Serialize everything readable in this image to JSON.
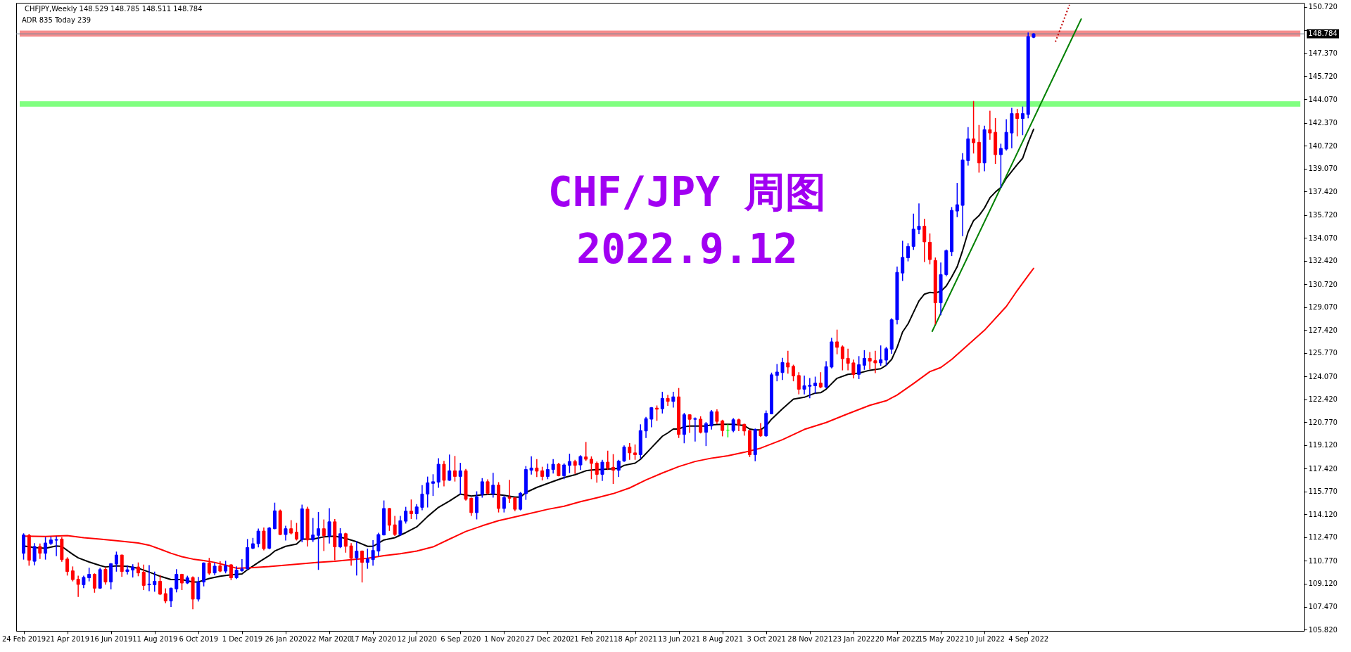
{
  "chart_data": {
    "type": "candlestick",
    "title": "CHF/JPY 周图",
    "subtitle": "2022.9.12",
    "annotations": [
      "CHFJPY,Weekly 148.529 148.785 148.511 148.784",
      "ADR 835 Today 239"
    ],
    "x": [
      "2019-02-24",
      "2019-03-03",
      "2019-03-10",
      "2019-03-17",
      "2019-03-24",
      "2019-03-31",
      "2019-04-07",
      "2019-04-14",
      "2019-04-21",
      "2019-04-28",
      "2019-05-05",
      "2019-05-12",
      "2019-05-19",
      "2019-05-26",
      "2019-06-02",
      "2019-06-09",
      "2019-06-16",
      "2019-06-23",
      "2019-06-30",
      "2019-07-07",
      "2019-07-14",
      "2019-07-21",
      "2019-07-28",
      "2019-08-04",
      "2019-08-11",
      "2019-08-18",
      "2019-08-25",
      "2019-09-01",
      "2019-09-08",
      "2019-09-15",
      "2019-09-22",
      "2019-09-29",
      "2019-10-06",
      "2019-10-13",
      "2019-10-20",
      "2019-10-27",
      "2019-11-03",
      "2019-11-10",
      "2019-11-17",
      "2019-11-24",
      "2019-12-01",
      "2019-12-08",
      "2019-12-15",
      "2019-12-22",
      "2019-12-29",
      "2020-01-05",
      "2020-01-12",
      "2020-01-19",
      "2020-01-26",
      "2020-02-02",
      "2020-02-09",
      "2020-02-16",
      "2020-02-23",
      "2020-03-01",
      "2020-03-08",
      "2020-03-15",
      "2020-03-22",
      "2020-03-29",
      "2020-04-05",
      "2020-04-12",
      "2020-04-19",
      "2020-04-26",
      "2020-05-03",
      "2020-05-10",
      "2020-05-17",
      "2020-05-24",
      "2020-05-31",
      "2020-06-07",
      "2020-06-14",
      "2020-06-21",
      "2020-06-28",
      "2020-07-05",
      "2020-07-12",
      "2020-07-19",
      "2020-07-26",
      "2020-08-02",
      "2020-08-09",
      "2020-08-16",
      "2020-08-23",
      "2020-08-30",
      "2020-09-06",
      "2020-09-13",
      "2020-09-20",
      "2020-09-27",
      "2020-10-04",
      "2020-10-11",
      "2020-10-18",
      "2020-10-25",
      "2020-11-01",
      "2020-11-08",
      "2020-11-15",
      "2020-11-22",
      "2020-11-29",
      "2020-12-06",
      "2020-12-13",
      "2020-12-20",
      "2020-12-27",
      "2021-01-03",
      "2021-01-10",
      "2021-01-17",
      "2021-01-24",
      "2021-01-31",
      "2021-02-07",
      "2021-02-14",
      "2021-02-21",
      "2021-02-28",
      "2021-03-07",
      "2021-03-14",
      "2021-03-21",
      "2021-03-28",
      "2021-04-04",
      "2021-04-11",
      "2021-04-18",
      "2021-04-25",
      "2021-05-02",
      "2021-05-09",
      "2021-05-16",
      "2021-05-23",
      "2021-05-30",
      "2021-06-06",
      "2021-06-13",
      "2021-06-20",
      "2021-06-27",
      "2021-07-04",
      "2021-07-11",
      "2021-07-18",
      "2021-07-25",
      "2021-08-01",
      "2021-08-08",
      "2021-08-15",
      "2021-08-22",
      "2021-08-29",
      "2021-09-05",
      "2021-09-12",
      "2021-09-19",
      "2021-09-26",
      "2021-10-03",
      "2021-10-10",
      "2021-10-17",
      "2021-10-24",
      "2021-10-31",
      "2021-11-07",
      "2021-11-14",
      "2021-11-21",
      "2021-11-28",
      "2021-12-05",
      "2021-12-12",
      "2021-12-19",
      "2021-12-26",
      "2022-01-02",
      "2022-01-09",
      "2022-01-16",
      "2022-01-23",
      "2022-01-30",
      "2022-02-06",
      "2022-02-13",
      "2022-02-20",
      "2022-02-27",
      "2022-03-06",
      "2022-03-13",
      "2022-03-20",
      "2022-03-27",
      "2022-04-03",
      "2022-04-10",
      "2022-04-17",
      "2022-04-24",
      "2022-05-01",
      "2022-05-08",
      "2022-05-15",
      "2022-05-22",
      "2022-05-29",
      "2022-06-05",
      "2022-06-12",
      "2022-06-19",
      "2022-06-26",
      "2022-07-03",
      "2022-07-10",
      "2022-07-17",
      "2022-07-24",
      "2022-07-31",
      "2022-08-07",
      "2022-08-14",
      "2022-08-21",
      "2022-08-28",
      "2022-09-04",
      "2022-09-11"
    ],
    "ohlc": [
      [
        111.32,
        112.72,
        110.9,
        112.64
      ],
      [
        112.61,
        112.68,
        110.46,
        110.82
      ],
      [
        110.74,
        112.01,
        110.49,
        111.81
      ],
      [
        111.81,
        111.98,
        110.95,
        111.32
      ],
      [
        111.32,
        112.44,
        110.9,
        112.06
      ],
      [
        112.03,
        112.48,
        111.95,
        112.28
      ],
      [
        112.26,
        112.51,
        111.15,
        112.31
      ],
      [
        112.34,
        112.44,
        110.74,
        110.86
      ],
      [
        110.9,
        110.99,
        109.75,
        110.0
      ],
      [
        110.05,
        110.33,
        109.33,
        109.42
      ],
      [
        109.45,
        109.66,
        108.21,
        109.07
      ],
      [
        109.05,
        109.66,
        108.84,
        109.58
      ],
      [
        109.55,
        110.24,
        109.33,
        109.8
      ],
      [
        109.8,
        109.83,
        108.51,
        108.8
      ],
      [
        108.8,
        110.24,
        108.8,
        110.14
      ],
      [
        110.16,
        110.29,
        109.09,
        109.25
      ],
      [
        109.25,
        110.57,
        108.75,
        110.57
      ],
      [
        110.54,
        111.4,
        110.03,
        111.19
      ],
      [
        111.19,
        111.19,
        109.66,
        110.0
      ],
      [
        110.0,
        110.41,
        109.83,
        110.13
      ],
      [
        110.11,
        110.49,
        109.61,
        110.33
      ],
      [
        110.33,
        110.62,
        109.7,
        109.9
      ],
      [
        109.96,
        110.46,
        108.7,
        109.0
      ],
      [
        109.04,
        110.43,
        108.62,
        109.1
      ],
      [
        109.05,
        109.96,
        108.59,
        109.3
      ],
      [
        109.3,
        109.71,
        108.34,
        108.37
      ],
      [
        108.41,
        108.75,
        107.76,
        107.88
      ],
      [
        107.88,
        108.8,
        107.48,
        108.8
      ],
      [
        108.75,
        110.13,
        108.54,
        109.8
      ],
      [
        109.8,
        109.8,
        108.7,
        109.17
      ],
      [
        109.17,
        109.66,
        109.14,
        109.55
      ],
      [
        109.57,
        109.61,
        107.32,
        108.01
      ],
      [
        108.01,
        109.58,
        107.88,
        109.25
      ],
      [
        109.25,
        110.62,
        108.97,
        110.62
      ],
      [
        110.62,
        110.95,
        109.8,
        109.88
      ],
      [
        109.9,
        110.62,
        109.78,
        110.39
      ],
      [
        110.41,
        110.71,
        110.0,
        110.03
      ],
      [
        110.03,
        110.74,
        109.91,
        110.41
      ],
      [
        110.49,
        110.49,
        109.42,
        109.55
      ],
      [
        109.55,
        110.33,
        109.5,
        110.11
      ],
      [
        110.06,
        110.86,
        110.03,
        110.19
      ],
      [
        110.19,
        112.31,
        110.19,
        111.73
      ],
      [
        111.68,
        112.39,
        111.65,
        112.01
      ],
      [
        112.01,
        113.06,
        111.78,
        112.92
      ],
      [
        112.92,
        113.14,
        111.57,
        111.65
      ],
      [
        111.68,
        113.17,
        111.65,
        113.14
      ],
      [
        113.09,
        114.93,
        113.09,
        114.38
      ],
      [
        114.38,
        114.43,
        112.67,
        112.67
      ],
      [
        112.67,
        113.27,
        112.28,
        113.09
      ],
      [
        113.09,
        113.67,
        112.72,
        112.77
      ],
      [
        112.84,
        113.47,
        112.28,
        112.34
      ],
      [
        112.31,
        114.79,
        112.15,
        114.53
      ],
      [
        114.5,
        114.63,
        111.85,
        112.28
      ],
      [
        112.28,
        113.83,
        112.18,
        112.64
      ],
      [
        112.61,
        114.26,
        110.16,
        113.09
      ],
      [
        113.09,
        113.72,
        111.52,
        112.59
      ],
      [
        112.56,
        114.53,
        112.06,
        113.59
      ],
      [
        113.59,
        113.75,
        110.86,
        111.78
      ],
      [
        111.78,
        113.09,
        111.73,
        112.73
      ],
      [
        112.73,
        112.76,
        111.4,
        111.82
      ],
      [
        111.85,
        112.01,
        110.46,
        110.96
      ],
      [
        110.99,
        112.15,
        109.75,
        111.48
      ],
      [
        111.48,
        111.48,
        109.25,
        110.66
      ],
      [
        110.66,
        111.62,
        110.24,
        110.91
      ],
      [
        110.86,
        112.23,
        110.46,
        111.52
      ],
      [
        111.48,
        112.76,
        111.15,
        112.67
      ],
      [
        112.64,
        115.09,
        112.64,
        114.55
      ],
      [
        114.55,
        114.55,
        112.97,
        113.34
      ],
      [
        113.37,
        113.97,
        112.61,
        112.67
      ],
      [
        112.67,
        113.97,
        112.61,
        113.67
      ],
      [
        113.63,
        114.63,
        113.5,
        114.36
      ],
      [
        114.36,
        115.16,
        113.83,
        114.17
      ],
      [
        114.17,
        114.83,
        113.8,
        114.66
      ],
      [
        114.63,
        116.2,
        114.46,
        115.59
      ],
      [
        115.59,
        116.81,
        114.66,
        116.4
      ],
      [
        116.36,
        116.98,
        115.49,
        116.48
      ],
      [
        116.45,
        118.14,
        116.08,
        117.74
      ],
      [
        117.74,
        117.94,
        116.18,
        116.58
      ],
      [
        116.58,
        118.4,
        116.58,
        117.27
      ],
      [
        117.27,
        118.3,
        116.53,
        116.86
      ],
      [
        116.86,
        117.8,
        115.59,
        117.27
      ],
      [
        117.27,
        117.36,
        115.16,
        115.21
      ],
      [
        115.29,
        115.29,
        114.05,
        114.25
      ],
      [
        114.25,
        115.75,
        113.8,
        115.4
      ],
      [
        115.57,
        116.7,
        115.37,
        116.48
      ],
      [
        116.48,
        116.61,
        115.59,
        115.65
      ],
      [
        115.62,
        117.08,
        115.37,
        116.23
      ],
      [
        116.23,
        116.41,
        114.3,
        114.55
      ],
      [
        114.55,
        115.45,
        114.3,
        115.34
      ],
      [
        115.37,
        116.58,
        114.99,
        115.29
      ],
      [
        115.32,
        115.32,
        114.4,
        114.49
      ],
      [
        114.49,
        115.7,
        114.45,
        115.65
      ],
      [
        115.62,
        117.57,
        115.21,
        117.36
      ],
      [
        117.31,
        118.27,
        117.03,
        117.47
      ],
      [
        117.47,
        118.07,
        116.86,
        117.24
      ],
      [
        117.27,
        117.52,
        116.61,
        116.86
      ],
      [
        116.86,
        117.74,
        116.7,
        117.36
      ],
      [
        117.36,
        118.07,
        117.11,
        117.74
      ],
      [
        117.74,
        117.8,
        116.91,
        116.91
      ],
      [
        116.91,
        117.77,
        116.7,
        117.69
      ],
      [
        117.66,
        118.46,
        117.14,
        117.94
      ],
      [
        117.94,
        118.02,
        117.08,
        117.66
      ],
      [
        117.69,
        118.35,
        117.36,
        118.3
      ],
      [
        118.27,
        119.31,
        118.02,
        118.1
      ],
      [
        118.1,
        118.27,
        116.7,
        117.8
      ],
      [
        117.82,
        117.9,
        116.45,
        117.01
      ],
      [
        117.01,
        118.02,
        116.58,
        117.89
      ],
      [
        117.89,
        118.68,
        117.36,
        117.47
      ],
      [
        117.52,
        118.43,
        116.36,
        117.31
      ],
      [
        117.31,
        118.02,
        116.86,
        117.97
      ],
      [
        117.97,
        119.06,
        117.94,
        118.98
      ],
      [
        118.98,
        119.23,
        118.1,
        118.56
      ],
      [
        118.56,
        119.13,
        118.1,
        118.43
      ],
      [
        118.43,
        120.58,
        118.18,
        120.17
      ],
      [
        120.14,
        121.11,
        119.67,
        121.03
      ],
      [
        120.99,
        121.82,
        120.45,
        121.82
      ],
      [
        121.79,
        121.94,
        120.91,
        121.71
      ],
      [
        121.74,
        122.93,
        121.44,
        122.49
      ],
      [
        122.49,
        122.7,
        121.99,
        122.27
      ],
      [
        122.27,
        122.93,
        121.87,
        122.6
      ],
      [
        122.6,
        123.2,
        119.67,
        119.89
      ],
      [
        119.89,
        121.41,
        119.29,
        121.31
      ],
      [
        121.31,
        121.31,
        120.04,
        120.98
      ],
      [
        120.98,
        121.08,
        119.42,
        121.03
      ],
      [
        120.99,
        121.16,
        120.0,
        120.04
      ],
      [
        120.04,
        120.75,
        119.09,
        120.67
      ],
      [
        120.5,
        121.61,
        120.28,
        121.53
      ],
      [
        121.53,
        121.66,
        120.67,
        120.83
      ],
      [
        120.87,
        120.91,
        119.79,
        120.17
      ],
      [
        120.2,
        120.58,
        119.72,
        120.2
      ],
      [
        120.17,
        121.03,
        120.09,
        120.95
      ],
      [
        120.95,
        120.99,
        120.17,
        120.58
      ],
      [
        120.62,
        120.62,
        119.84,
        120.14
      ],
      [
        120.17,
        120.17,
        118.3,
        118.43
      ],
      [
        118.43,
        120.28,
        118.0,
        120.25
      ],
      [
        120.22,
        120.67,
        119.76,
        119.79
      ],
      [
        119.79,
        121.58,
        119.76,
        121.41
      ],
      [
        121.38,
        124.31,
        121.38,
        124.19
      ],
      [
        124.14,
        124.93,
        123.76,
        124.39
      ],
      [
        124.35,
        125.38,
        123.86,
        125.08
      ],
      [
        125.05,
        125.88,
        124.31,
        124.75
      ],
      [
        124.8,
        124.88,
        123.76,
        124.11
      ],
      [
        124.14,
        124.34,
        122.82,
        123.15
      ],
      [
        123.15,
        124.09,
        122.82,
        123.4
      ],
      [
        123.36,
        123.92,
        122.53,
        123.44
      ],
      [
        123.4,
        124.02,
        122.87,
        123.59
      ],
      [
        123.59,
        124.34,
        123.26,
        123.31
      ],
      [
        123.31,
        125.13,
        123.26,
        124.78
      ],
      [
        124.75,
        126.82,
        124.69,
        126.57
      ],
      [
        126.57,
        127.41,
        125.71,
        126.17
      ],
      [
        126.21,
        126.27,
        124.55,
        125.35
      ],
      [
        125.38,
        126.04,
        124.55,
        125.02
      ],
      [
        125.05,
        125.25,
        123.97,
        124.22
      ],
      [
        124.22,
        125.5,
        123.92,
        124.92
      ],
      [
        124.88,
        125.93,
        124.59,
        125.38
      ],
      [
        125.38,
        125.79,
        124.63,
        125.18
      ],
      [
        125.21,
        125.88,
        124.35,
        125.05
      ],
      [
        125.05,
        126.27,
        124.88,
        125.28
      ],
      [
        125.25,
        126.17,
        124.88,
        126.07
      ],
      [
        126.04,
        128.23,
        125.74,
        128.16
      ],
      [
        128.16,
        131.96,
        127.86,
        131.58
      ],
      [
        131.53,
        133.82,
        131.0,
        132.66
      ],
      [
        132.63,
        133.64,
        132.41,
        133.45
      ],
      [
        133.45,
        135.77,
        133.24,
        134.7
      ],
      [
        134.67,
        136.51,
        134.37,
        134.91
      ],
      [
        134.91,
        135.41,
        132.36,
        133.78
      ],
      [
        133.75,
        134.35,
        132.2,
        132.5
      ],
      [
        132.44,
        132.61,
        127.86,
        129.38
      ],
      [
        129.38,
        132.25,
        128.52,
        131.42
      ],
      [
        131.42,
        133.19,
        131.34,
        133.15
      ],
      [
        133.07,
        136.25,
        132.79,
        136.05
      ],
      [
        136.0,
        137.99,
        135.6,
        136.46
      ],
      [
        136.41,
        140.14,
        134.23,
        139.69
      ],
      [
        139.64,
        142.01,
        139.31,
        141.21
      ],
      [
        141.21,
        143.9,
        140.19,
        140.93
      ],
      [
        140.96,
        142.17,
        138.81,
        139.47
      ],
      [
        139.47,
        142.12,
        138.91,
        141.87
      ],
      [
        141.87,
        143.2,
        141.18,
        141.63
      ],
      [
        141.68,
        142.67,
        139.44,
        140.07
      ],
      [
        140.07,
        140.82,
        137.7,
        140.52
      ],
      [
        140.47,
        142.59,
        140.4,
        141.68
      ],
      [
        141.63,
        143.41,
        140.57,
        143.03
      ],
      [
        143.03,
        143.33,
        141.43,
        142.67
      ],
      [
        142.67,
        143.5,
        141.51,
        143.03
      ],
      [
        142.97,
        148.84,
        142.72,
        148.59
      ],
      [
        148.529,
        148.785,
        148.511,
        148.784
      ]
    ],
    "colors": [
      "#0000ff",
      "#ff0000",
      "#0000ff",
      "#ff0000",
      "#0000ff",
      "#0000ff",
      "#0000ff",
      "#ff0000",
      "#ff0000",
      "#ff0000",
      "#ff0000",
      "#0000ff",
      "#0000ff",
      "#ff0000",
      "#0000ff",
      "#ff0000",
      "#0000ff",
      "#0000ff",
      "#ff0000",
      "#0000ff",
      "#0000ff",
      "#ff0000",
      "#ff0000",
      "#0000ff",
      "#0000ff",
      "#ff0000",
      "#ff0000",
      "#0000ff",
      "#0000ff",
      "#ff0000",
      "#0000ff",
      "#ff0000",
      "#0000ff",
      "#0000ff",
      "#ff0000",
      "#0000ff",
      "#ff0000",
      "#0000ff",
      "#ff0000",
      "#0000ff",
      "#0000ff",
      "#0000ff",
      "#0000ff",
      "#0000ff",
      "#ff0000",
      "#0000ff",
      "#0000ff",
      "#ff0000",
      "#0000ff",
      "#ff0000",
      "#ff0000",
      "#0000ff",
      "#ff0000",
      "#0000ff",
      "#0000ff",
      "#ff0000",
      "#0000ff",
      "#ff0000",
      "#0000ff",
      "#ff0000",
      "#ff0000",
      "#0000ff",
      "#ff0000",
      "#0000ff",
      "#0000ff",
      "#0000ff",
      "#0000ff",
      "#ff0000",
      "#ff0000",
      "#0000ff",
      "#0000ff",
      "#ff0000",
      "#0000ff",
      "#0000ff",
      "#0000ff",
      "#0000ff",
      "#0000ff",
      "#ff0000",
      "#0000ff",
      "#ff0000",
      "#0000ff",
      "#ff0000",
      "#ff0000",
      "#0000ff",
      "#0000ff",
      "#ff0000",
      "#0000ff",
      "#ff0000",
      "#0000ff",
      "#ff0000",
      "#ff0000",
      "#0000ff",
      "#0000ff",
      "#0000ff",
      "#ff0000",
      "#ff0000",
      "#0000ff",
      "#0000ff",
      "#ff0000",
      "#0000ff",
      "#0000ff",
      "#ff0000",
      "#0000ff",
      "#ff0000",
      "#ff0000",
      "#ff0000",
      "#0000ff",
      "#ff0000",
      "#ff0000",
      "#0000ff",
      "#0000ff",
      "#ff0000",
      "#ff0000",
      "#0000ff",
      "#0000ff",
      "#0000ff",
      "#ff0000",
      "#0000ff",
      "#ff0000",
      "#0000ff",
      "#ff0000",
      "#0000ff",
      "#ff0000",
      "#0000ff",
      "#ff0000",
      "#0000ff",
      "#0000ff",
      "#ff0000",
      "#ff0000",
      "#00ff00",
      "#0000ff",
      "#ff0000",
      "#ff0000",
      "#ff0000",
      "#0000ff",
      "#ff0000",
      "#0000ff",
      "#0000ff",
      "#0000ff",
      "#0000ff",
      "#ff0000",
      "#ff0000",
      "#ff0000",
      "#0000ff",
      "#0000ff",
      "#0000ff",
      "#ff0000",
      "#0000ff",
      "#0000ff",
      "#ff0000",
      "#ff0000",
      "#ff0000",
      "#ff0000",
      "#0000ff",
      "#0000ff",
      "#ff0000",
      "#ff0000",
      "#0000ff",
      "#0000ff",
      "#0000ff",
      "#0000ff",
      "#0000ff",
      "#0000ff",
      "#0000ff",
      "#0000ff",
      "#ff0000",
      "#ff0000",
      "#ff0000",
      "#0000ff",
      "#0000ff",
      "#0000ff",
      "#0000ff",
      "#0000ff",
      "#0000ff",
      "#ff0000",
      "#ff0000",
      "#0000ff",
      "#ff0000",
      "#ff0000",
      "#0000ff",
      "#0000ff",
      "#0000ff",
      "#ff0000",
      "#0000ff",
      "#0000ff",
      "#0000ff"
    ],
    "series": [
      {
        "type": "line",
        "color": "#000000",
        "x": [
          "2019-02-24",
          "2019-03-10",
          "2019-03-24",
          "2019-04-07",
          "2019-04-14",
          "2019-04-28",
          "2019-05-05",
          "2019-05-19",
          "2019-06-02",
          "2019-06-09",
          "2019-06-23",
          "2019-07-07",
          "2019-07-21",
          "2019-08-04",
          "2019-08-18",
          "2019-09-01",
          "2019-09-15",
          "2019-09-29",
          "2019-10-06",
          "2019-10-20",
          "2019-11-03",
          "2019-11-17",
          "2019-12-01",
          "2019-12-08",
          "2019-12-22",
          "2020-01-05",
          "2020-01-12",
          "2020-01-26",
          "2020-02-09",
          "2020-02-16",
          "2020-03-01",
          "2020-03-15",
          "2020-03-29",
          "2020-04-12",
          "2020-04-26",
          "2020-05-10",
          "2020-05-17",
          "2020-05-31",
          "2020-06-14",
          "2020-06-28",
          "2020-07-12",
          "2020-07-26",
          "2020-08-09",
          "2020-08-23",
          "2020-09-06",
          "2020-09-20",
          "2020-10-04",
          "2020-10-18",
          "2020-11-01",
          "2020-11-15",
          "2020-11-22",
          "2020-11-29",
          "2020-12-13",
          "2021-01-03",
          "2021-01-17",
          "2021-01-31",
          "2021-02-14",
          "2021-02-21",
          "2021-03-21",
          "2021-03-28",
          "2021-04-04",
          "2021-04-18",
          "2021-04-25",
          "2021-05-09",
          "2021-05-23",
          "2021-05-30",
          "2021-06-06",
          "2021-06-13",
          "2021-06-20",
          "2021-06-27",
          "2021-07-18",
          "2021-07-25",
          "2021-08-08",
          "2021-08-22",
          "2021-09-05",
          "2021-09-12",
          "2021-09-19",
          "2021-09-26",
          "2021-10-03",
          "2021-10-10",
          "2021-10-24",
          "2021-11-07",
          "2021-11-21",
          "2021-12-05",
          "2021-12-12",
          "2021-12-19",
          "2022-01-02",
          "2022-01-16",
          "2022-01-30",
          "2022-02-13",
          "2022-02-27",
          "2022-03-06",
          "2022-03-13",
          "2022-03-20",
          "2022-03-27",
          "2022-04-03",
          "2022-04-10",
          "2022-04-17",
          "2022-04-24",
          "2022-05-01",
          "2022-05-08",
          "2022-05-15",
          "2022-05-22",
          "2022-05-29",
          "2022-06-05",
          "2022-06-12",
          "2022-06-19",
          "2022-06-26",
          "2022-07-03",
          "2022-07-10",
          "2022-07-17",
          "2022-07-24",
          "2022-07-31",
          "2022-08-07",
          "2022-08-14",
          "2022-08-21",
          "2022-08-28",
          "2022-09-04",
          "2022-09-11"
        ],
        "values": [
          111.85,
          111.73,
          111.68,
          111.85,
          111.81,
          111.24,
          110.99,
          110.69,
          110.44,
          110.33,
          110.41,
          110.38,
          110.24,
          109.96,
          109.66,
          109.42,
          109.42,
          109.25,
          109.25,
          109.5,
          109.66,
          109.76,
          109.83,
          110.13,
          110.66,
          111.15,
          111.48,
          111.82,
          111.98,
          112.34,
          112.34,
          112.51,
          112.56,
          112.39,
          112.15,
          111.82,
          111.82,
          112.28,
          112.44,
          112.81,
          113.22,
          113.97,
          114.63,
          115.09,
          115.59,
          115.45,
          115.54,
          115.59,
          115.5,
          115.37,
          115.37,
          115.7,
          116.07,
          116.5,
          116.78,
          116.98,
          117.27,
          117.32,
          117.41,
          117.44,
          117.66,
          117.82,
          118.1,
          118.93,
          119.76,
          120.0,
          120.28,
          120.28,
          120.45,
          120.5,
          120.5,
          120.58,
          120.62,
          120.62,
          120.53,
          120.28,
          120.22,
          120.22,
          120.5,
          120.99,
          121.74,
          122.43,
          122.57,
          122.87,
          122.9,
          123.15,
          123.94,
          124.22,
          124.31,
          124.52,
          124.63,
          124.88,
          125.3,
          126.17,
          127.28,
          127.86,
          128.69,
          129.52,
          130.01,
          130.13,
          130.1,
          130.21,
          130.59,
          131.25,
          131.98,
          133.16,
          134.48,
          135.31,
          135.67,
          136.22,
          136.96,
          137.37,
          137.7,
          138.37,
          138.86,
          139.36,
          139.81,
          140.93,
          141.9
        ]
      },
      {
        "type": "line",
        "color": "#ff0000",
        "x": [
          "2019-02-24",
          "2019-03-24",
          "2019-04-21",
          "2019-05-12",
          "2019-06-02",
          "2019-06-23",
          "2019-07-21",
          "2019-08-04",
          "2019-08-18",
          "2019-09-01",
          "2019-09-15",
          "2019-09-29",
          "2019-10-13",
          "2019-10-27",
          "2019-11-10",
          "2019-11-24",
          "2019-12-15",
          "2020-01-05",
          "2020-01-26",
          "2020-02-16",
          "2020-03-08",
          "2020-03-29",
          "2020-04-19",
          "2020-05-10",
          "2020-05-31",
          "2020-06-21",
          "2020-07-12",
          "2020-08-02",
          "2020-08-23",
          "2020-09-13",
          "2020-10-04",
          "2020-10-25",
          "2020-11-08",
          "2020-12-27",
          "2021-01-17",
          "2021-02-07",
          "2021-02-28",
          "2021-03-21",
          "2021-04-11",
          "2021-05-02",
          "2021-05-23",
          "2021-06-13",
          "2021-07-04",
          "2021-07-25",
          "2021-08-15",
          "2021-09-05",
          "2021-09-26",
          "2021-10-24",
          "2021-11-21",
          "2021-12-19",
          "2022-01-16",
          "2022-02-13",
          "2022-03-06",
          "2022-03-20",
          "2022-04-10",
          "2022-05-01",
          "2022-05-15",
          "2022-05-29",
          "2022-07-10",
          "2022-08-07",
          "2022-08-21",
          "2022-09-04",
          "2022-09-11"
        ],
        "values": [
          112.56,
          112.53,
          112.59,
          112.44,
          112.34,
          112.23,
          112.06,
          111.9,
          111.62,
          111.32,
          111.07,
          110.9,
          110.79,
          110.66,
          110.46,
          110.24,
          110.29,
          110.36,
          110.46,
          110.57,
          110.66,
          110.74,
          110.86,
          110.96,
          111.15,
          111.29,
          111.48,
          111.78,
          112.34,
          112.89,
          113.3,
          113.67,
          113.85,
          114.49,
          114.71,
          115.04,
          115.32,
          115.62,
          116.03,
          116.61,
          117.11,
          117.57,
          117.94,
          118.18,
          118.35,
          118.6,
          118.9,
          119.51,
          120.25,
          120.75,
          121.38,
          121.99,
          122.32,
          122.73,
          123.56,
          124.42,
          124.72,
          125.3,
          127.4,
          129.12,
          130.27,
          131.34,
          131.87
        ]
      },
      {
        "type": "line",
        "color": "#008000",
        "x": [
          "2022-05-04",
          "2022-11-11"
        ],
        "values": [
          127.33,
          149.85
        ]
      },
      {
        "type": "line",
        "color": "#c00000",
        "line_style": "dotted",
        "x": [
          "2022-10-09",
          "2022-10-27"
        ],
        "values": [
          148.21,
          150.87
        ]
      }
    ],
    "xlim": [
      "2019-02-19",
      "2023-08-19"
    ],
    "xticks": [
      {
        "value": "2019-02-24",
        "label": "24 Feb 2019"
      },
      {
        "value": "2019-04-21",
        "label": "21 Apr 2019"
      },
      {
        "value": "2019-06-16",
        "label": "16 Jun 2019"
      },
      {
        "value": "2019-08-11",
        "label": "11 Aug 2019"
      },
      {
        "value": "2019-10-06",
        "label": "6 Oct 2019"
      },
      {
        "value": "2019-12-01",
        "label": "1 Dec 2019"
      },
      {
        "value": "2020-01-26",
        "label": "26 Jan 2020"
      },
      {
        "value": "2020-03-22",
        "label": "22 Mar 2020"
      },
      {
        "value": "2020-05-17",
        "label": "17 May 2020"
      },
      {
        "value": "2020-07-12",
        "label": "12 Jul 2020"
      },
      {
        "value": "2020-09-06",
        "label": "6 Sep 2020"
      },
      {
        "value": "2020-11-01",
        "label": "1 Nov 2020"
      },
      {
        "value": "2020-12-27",
        "label": "27 Dec 2020"
      },
      {
        "value": "2021-02-21",
        "label": "21 Feb 2021"
      },
      {
        "value": "2021-04-18",
        "label": "18 Apr 2021"
      },
      {
        "value": "2021-06-13",
        "label": "13 Jun 2021"
      },
      {
        "value": "2021-08-08",
        "label": "8 Aug 2021"
      },
      {
        "value": "2021-10-03",
        "label": "3 Oct 2021"
      },
      {
        "value": "2021-11-28",
        "label": "28 Nov 2021"
      },
      {
        "value": "2022-01-23",
        "label": "23 Jan 2022"
      },
      {
        "value": "2022-03-20",
        "label": "20 Mar 2022"
      },
      {
        "value": "2022-05-15",
        "label": "15 May 2022"
      },
      {
        "value": "2022-07-10",
        "label": "10 Jul 2022"
      },
      {
        "value": "2022-09-04",
        "label": "4 Sep 2022"
      }
    ],
    "ylim": [
      105.72,
      151.02
    ],
    "yticks": [
      {
        "value": 105.82,
        "label": "105.820"
      },
      {
        "value": 107.47,
        "label": "107.470"
      },
      {
        "value": 109.12,
        "label": "109.120"
      },
      {
        "value": 110.77,
        "label": "110.770"
      },
      {
        "value": 112.47,
        "label": "112.470"
      },
      {
        "value": 114.12,
        "label": "114.120"
      },
      {
        "value": 115.77,
        "label": "115.770"
      },
      {
        "value": 117.42,
        "label": "117.420"
      },
      {
        "value": 119.12,
        "label": "119.120"
      },
      {
        "value": 120.77,
        "label": "120.770"
      },
      {
        "value": 122.42,
        "label": "122.420"
      },
      {
        "value": 124.07,
        "label": "124.070"
      },
      {
        "value": 125.77,
        "label": "125.770"
      },
      {
        "value": 127.42,
        "label": "127.420"
      },
      {
        "value": 129.07,
        "label": "129.070"
      },
      {
        "value": 130.72,
        "label": "130.720"
      },
      {
        "value": 132.42,
        "label": "132.420"
      },
      {
        "value": 134.07,
        "label": "134.070"
      },
      {
        "value": 135.72,
        "label": "135.720"
      },
      {
        "value": 137.42,
        "label": "137.420"
      },
      {
        "value": 139.07,
        "label": "139.070"
      },
      {
        "value": 140.72,
        "label": "140.720"
      },
      {
        "value": 142.37,
        "label": "142.370"
      },
      {
        "value": 144.07,
        "label": "144.070"
      },
      {
        "value": 145.72,
        "label": "145.720"
      },
      {
        "value": 147.37,
        "label": "147.370"
      },
      {
        "value": 149.02,
        "label": null
      },
      {
        "value": 150.72,
        "label": "150.720"
      }
    ],
    "ref_lines": [
      {
        "axis": "y",
        "value": 148.784,
        "label": "148.784",
        "color": "#778899"
      }
    ],
    "bands": [
      {
        "axis": "y",
        "from": 148.58,
        "to": 149.02,
        "color": "#f58c8c"
      },
      {
        "axis": "y",
        "from": 143.52,
        "to": 143.92,
        "color": "#80ff80"
      }
    ]
  }
}
